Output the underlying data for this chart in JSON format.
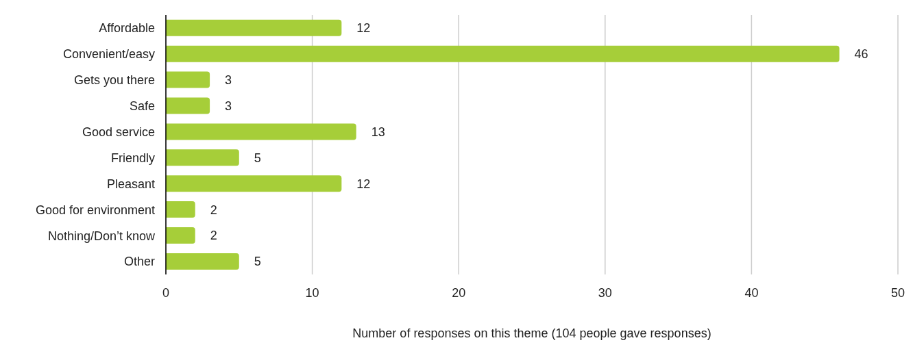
{
  "chart_data": {
    "type": "bar",
    "orientation": "horizontal",
    "xlabel": "Number of responses on this theme (104 people gave responses)",
    "categories": [
      "Affordable",
      "Convenient/easy",
      "Gets you there",
      "Safe",
      "Good service",
      "Friendly",
      "Pleasant",
      "Good for environment",
      "Nothing/Don’t know",
      "Other"
    ],
    "values": [
      12,
      46,
      3,
      3,
      13,
      5,
      12,
      2,
      2,
      5
    ],
    "color": "#a6ce39",
    "xlim": [
      0,
      50
    ],
    "xticks": [
      0,
      10,
      20,
      30,
      40,
      50
    ],
    "grid": "x",
    "data_labels": true,
    "legend": false
  }
}
